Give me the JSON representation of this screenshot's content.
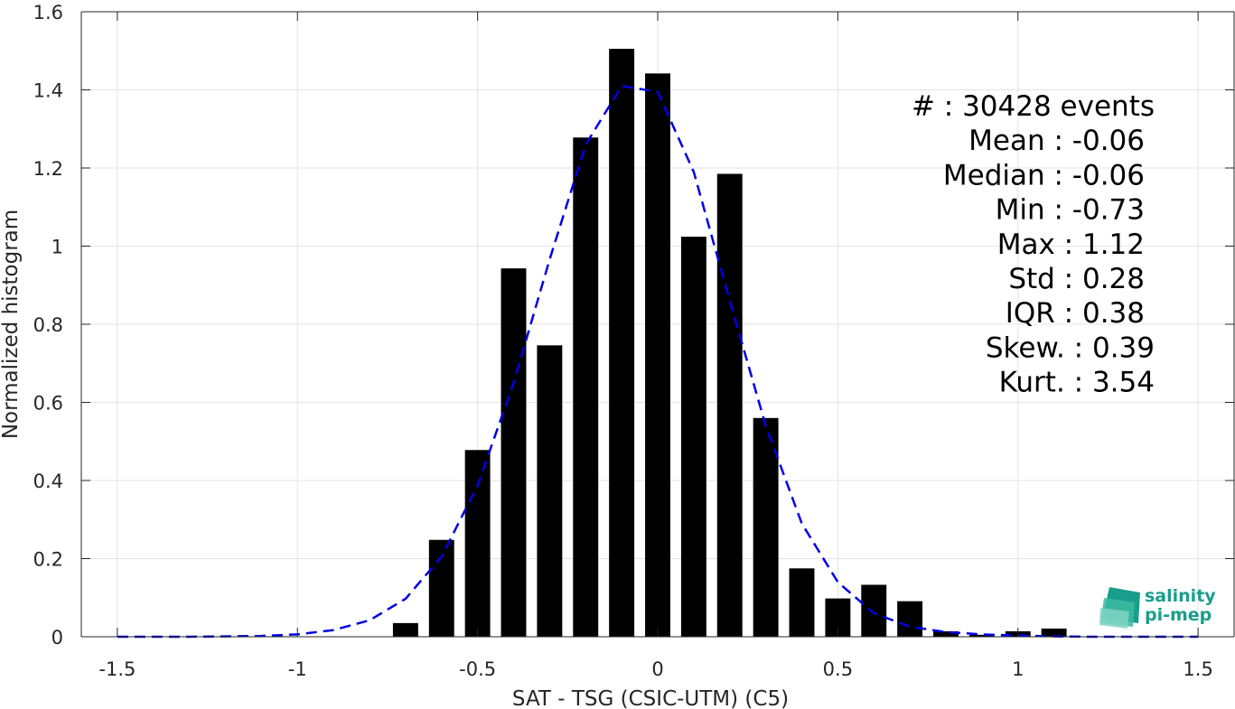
{
  "chart_data": {
    "type": "bar",
    "xlabel": "SAT - TSG (CSIC-UTM) (C5)",
    "ylabel": "Normalized histogram",
    "xlim": [
      -1.6,
      1.6
    ],
    "ylim": [
      0,
      1.6
    ],
    "xticks": [
      -1.5,
      -1,
      -0.5,
      0,
      0.5,
      1,
      1.5
    ],
    "xtick_labels": [
      "-1.5",
      "-1",
      "-0.5",
      "0",
      "0.5",
      "1",
      "1.5"
    ],
    "yticks": [
      0,
      0.2,
      0.4,
      0.6,
      0.8,
      1,
      1.2,
      1.4,
      1.6
    ],
    "ytick_labels": [
      "0",
      "0.2",
      "0.4",
      "0.6",
      "0.8",
      "1",
      "1.2",
      "1.4",
      "1.6"
    ],
    "grid": true,
    "bar_color": "#000000",
    "bar_width": 0.07,
    "bars": {
      "x": [
        -0.7,
        -0.6,
        -0.5,
        -0.4,
        -0.3,
        -0.2,
        -0.1,
        0.0,
        0.1,
        0.2,
        0.3,
        0.4,
        0.5,
        0.6,
        0.7,
        0.8,
        0.9,
        1.0,
        1.1
      ],
      "values": [
        0.035,
        0.248,
        0.478,
        0.943,
        0.746,
        1.278,
        1.505,
        1.442,
        1.024,
        1.185,
        0.56,
        0.175,
        0.098,
        0.133,
        0.091,
        0.014,
        0.005,
        0.014,
        0.021
      ]
    },
    "fit_curve": {
      "color": "#0000e6",
      "style": "dashed",
      "x": [
        -1.5,
        -1.4,
        -1.3,
        -1.2,
        -1.1,
        -1.0,
        -0.9,
        -0.8,
        -0.7,
        -0.6,
        -0.5,
        -0.4,
        -0.3,
        -0.2,
        -0.1,
        0.0,
        0.1,
        0.2,
        0.3,
        0.4,
        0.5,
        0.6,
        0.7,
        0.8,
        0.9,
        1.0,
        1.1,
        1.2,
        1.3,
        1.4,
        1.5
      ],
      "y": [
        0,
        0,
        0,
        0.001,
        0.002,
        0.006,
        0.017,
        0.042,
        0.097,
        0.205,
        0.387,
        0.65,
        0.966,
        1.26,
        1.41,
        1.395,
        1.19,
        0.86,
        0.54,
        0.29,
        0.14,
        0.06,
        0.026,
        0.012,
        0.006,
        0.003,
        0.001,
        0,
        0,
        0,
        0
      ]
    },
    "stats": [
      {
        "label": "#  : 30428 events"
      },
      {
        "label": "Mean : -0.06"
      },
      {
        "label": "Median : -0.06"
      },
      {
        "label": "Min : -0.73"
      },
      {
        "label": "Max : 1.12"
      },
      {
        "label": "Std : 0.28"
      },
      {
        "label": "IQR : 0.38"
      },
      {
        "label": "Skew. : 0.39"
      },
      {
        "label": "Kurt. : 3.54"
      }
    ]
  },
  "logo": {
    "line1": "salinity",
    "line2": "pi-mep",
    "color": "#1a9e8c"
  }
}
